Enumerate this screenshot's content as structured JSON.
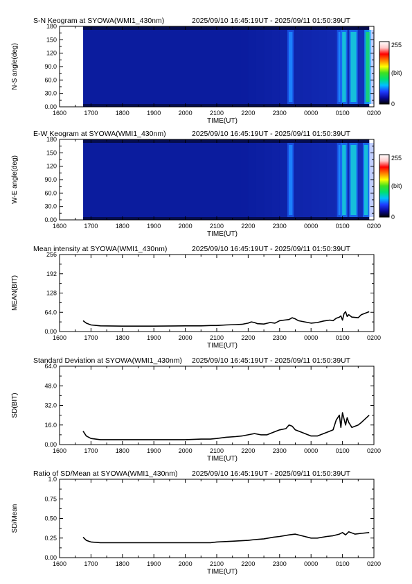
{
  "time_range": "2025/09/10 16:45:19UT - 2025/09/11 01:50:39UT",
  "colors": {
    "keogram_background": "#0b1c9e",
    "text": "#000000"
  },
  "x_axis": {
    "label": "TIME(UT)",
    "ticks": [
      "1600",
      "1700",
      "1800",
      "1900",
      "2000",
      "2100",
      "2200",
      "2300",
      "0000",
      "0100",
      "0200"
    ],
    "range_hours": [
      16,
      26
    ]
  },
  "colorbar": {
    "max_label": "255",
    "min_label": "0",
    "unit_label": "(bit)",
    "stops": [
      "#000000",
      "#0a0a9a",
      "#1e3cff",
      "#00c0ff",
      "#00e070",
      "#40e020",
      "#ffff00",
      "#ff8000",
      "#ff0000",
      "#ffc8c8",
      "#ffffff"
    ]
  },
  "chart_data": [
    {
      "type": "heatmap",
      "title": "S-N Keogram at SYOWA(WMI1_430nm)",
      "xlabel": "TIME(UT)",
      "ylabel": "N-S angle(deg)",
      "yticks": [
        "0.00",
        "30.0",
        "60.0",
        "90.0",
        "120",
        "150",
        "180"
      ],
      "ylim": [
        0,
        180
      ],
      "data_start_hour": 16.75,
      "data_end_hour": 25.85,
      "bright_bands_hour": [
        {
          "center": 23.35,
          "width": 0.12,
          "level": "medium"
        },
        {
          "center": 24.9,
          "width": 0.06,
          "level": "medium"
        },
        {
          "center": 25.05,
          "width": 0.12,
          "level": "high"
        },
        {
          "center": 25.35,
          "width": 0.18,
          "level": "high"
        },
        {
          "center": 25.8,
          "width": 0.12,
          "level": "highest"
        }
      ]
    },
    {
      "type": "heatmap",
      "title": "E-W Keogram at SYOWA(WMI1_430nm)",
      "xlabel": "TIME(UT)",
      "ylabel": "W-E angle(deg)",
      "yticks": [
        "0.00",
        "30.0",
        "60.0",
        "90.0",
        "120",
        "150",
        "180"
      ],
      "ylim": [
        0,
        180
      ],
      "data_start_hour": 16.75,
      "data_end_hour": 25.85,
      "bright_bands_hour": [
        {
          "center": 23.35,
          "width": 0.12,
          "level": "medium"
        },
        {
          "center": 24.9,
          "width": 0.06,
          "level": "medium"
        },
        {
          "center": 25.05,
          "width": 0.12,
          "level": "high"
        },
        {
          "center": 25.35,
          "width": 0.18,
          "level": "high"
        },
        {
          "center": 25.75,
          "width": 0.12,
          "level": "high"
        }
      ]
    },
    {
      "type": "line",
      "title": "Mean intensity at SYOWA(WMI1_430nm)",
      "xlabel": "TIME(UT)",
      "ylabel": "MEAN(BIT)",
      "yticks": [
        "0.00",
        "64.0",
        "128",
        "192",
        "256"
      ],
      "ylim": [
        0,
        256
      ],
      "x": [
        16.75,
        16.85,
        17.0,
        17.3,
        18.0,
        19.0,
        20.0,
        20.5,
        20.8,
        21.0,
        21.3,
        21.6,
        21.8,
        22.0,
        22.1,
        22.2,
        22.3,
        22.5,
        22.7,
        22.85,
        23.0,
        23.15,
        23.3,
        23.4,
        23.5,
        23.6,
        23.8,
        24.0,
        24.2,
        24.4,
        24.6,
        24.7,
        24.8,
        24.9,
        24.95,
        25.0,
        25.05,
        25.1,
        25.15,
        25.2,
        25.3,
        25.5,
        25.6,
        25.85
      ],
      "y": [
        36,
        28,
        22,
        19,
        18,
        18,
        19,
        19,
        20,
        20,
        22,
        23,
        24,
        28,
        32,
        30,
        26,
        25,
        30,
        28,
        36,
        38,
        40,
        46,
        42,
        36,
        32,
        28,
        30,
        35,
        38,
        36,
        44,
        48,
        52,
        38,
        60,
        66,
        50,
        56,
        48,
        46,
        56,
        66
      ]
    },
    {
      "type": "line",
      "title": "Standard Deviation at SYOWA(WMI1_430nm)",
      "xlabel": "TIME(UT)",
      "ylabel": "SD(BIT)",
      "yticks": [
        "0.00",
        "16.0",
        "32.0",
        "48.0",
        "64.0"
      ],
      "ylim": [
        0,
        64
      ],
      "x": [
        16.75,
        16.85,
        17.0,
        17.3,
        18.0,
        19.0,
        20.0,
        20.5,
        20.8,
        21.0,
        21.3,
        21.6,
        21.8,
        22.0,
        22.2,
        22.4,
        22.6,
        22.8,
        23.0,
        23.2,
        23.3,
        23.4,
        23.5,
        23.7,
        24.0,
        24.2,
        24.4,
        24.6,
        24.7,
        24.8,
        24.9,
        24.95,
        25.0,
        25.1,
        25.15,
        25.2,
        25.3,
        25.5,
        25.6,
        25.85
      ],
      "y": [
        11,
        7,
        5,
        4,
        4,
        4,
        4,
        4.5,
        4.5,
        5,
        6,
        6.5,
        7,
        8,
        9,
        8,
        8,
        10,
        12,
        13,
        16,
        15,
        12,
        10,
        7,
        7,
        9,
        11,
        12,
        20,
        24,
        14,
        26,
        16,
        22,
        18,
        14,
        16,
        18,
        24
      ]
    },
    {
      "type": "line",
      "title": "Ratio of SD/Mean at SYOWA(WMI1_430nm)",
      "xlabel": "TIME(UT)",
      "ylabel": "SD/Mean",
      "yticks": [
        "0.00",
        "0.25",
        "0.50",
        "0.75",
        "1.0"
      ],
      "ylim": [
        0,
        1
      ],
      "x": [
        16.75,
        16.85,
        17.0,
        17.3,
        18.0,
        19.0,
        20.0,
        20.5,
        20.8,
        21.0,
        21.5,
        22.0,
        22.2,
        22.5,
        22.8,
        23.0,
        23.3,
        23.5,
        23.8,
        24.0,
        24.2,
        24.5,
        24.7,
        24.9,
        25.0,
        25.1,
        25.2,
        25.4,
        25.6,
        25.85
      ],
      "y": [
        0.26,
        0.22,
        0.2,
        0.19,
        0.19,
        0.19,
        0.19,
        0.19,
        0.19,
        0.2,
        0.21,
        0.22,
        0.23,
        0.24,
        0.26,
        0.27,
        0.29,
        0.3,
        0.27,
        0.25,
        0.25,
        0.27,
        0.28,
        0.3,
        0.32,
        0.29,
        0.33,
        0.3,
        0.31,
        0.32
      ]
    }
  ]
}
